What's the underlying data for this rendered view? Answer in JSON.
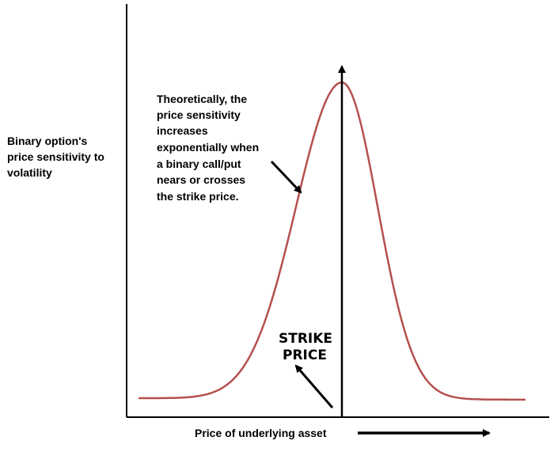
{
  "y_axis_label": [
    "Binary option's",
    "price sensitivity to",
    "volatility"
  ],
  "annotation": [
    "Theoretically, the",
    "price sensitivity",
    "increases",
    "exponentially when",
    "a binary call/put",
    "nears or crosses",
    "the strike price."
  ],
  "strike_label": [
    "STRIKE",
    "PRICE"
  ],
  "x_axis_label": "Price of underlying asset"
}
